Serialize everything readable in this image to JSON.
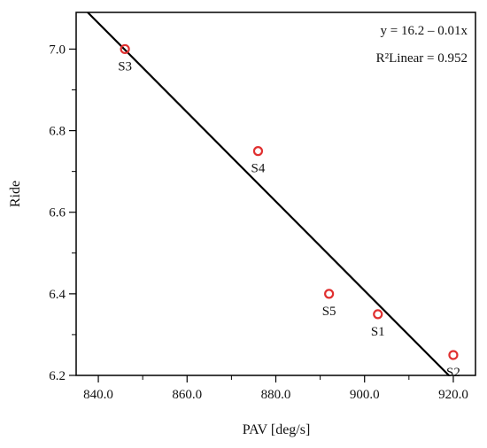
{
  "chart_data": {
    "type": "scatter",
    "title": "",
    "xlabel": "PAV [deg/s]",
    "ylabel": "Ride",
    "xlim": [
      835,
      925
    ],
    "ylim": [
      6.2,
      7.09
    ],
    "x_ticks": [
      840,
      860,
      880,
      900,
      920
    ],
    "x_tick_labels": [
      "840.0",
      "860.0",
      "880.0",
      "900.0",
      "920.0"
    ],
    "y_ticks": [
      6.2,
      6.4,
      6.6,
      6.8,
      7.0
    ],
    "y_tick_labels": [
      "6.2",
      "6.4",
      "6.6",
      "6.8",
      "7.0"
    ],
    "grid": false,
    "points": [
      {
        "label": "S3",
        "x": 846,
        "y": 7.0
      },
      {
        "label": "S4",
        "x": 876,
        "y": 6.75
      },
      {
        "label": "S5",
        "x": 892,
        "y": 6.4
      },
      {
        "label": "S1",
        "x": 903,
        "y": 6.35
      },
      {
        "label": "S2",
        "x": 920,
        "y": 6.25
      }
    ],
    "fit_line": {
      "x": [
        837.6,
        919.0
      ],
      "y": [
        7.09,
        6.2
      ]
    },
    "annotations": [
      "y = 16.2 – 0.01x",
      "R²Linear = 0.952"
    ],
    "marker_color": "#e03030",
    "line_color": "#000000"
  }
}
